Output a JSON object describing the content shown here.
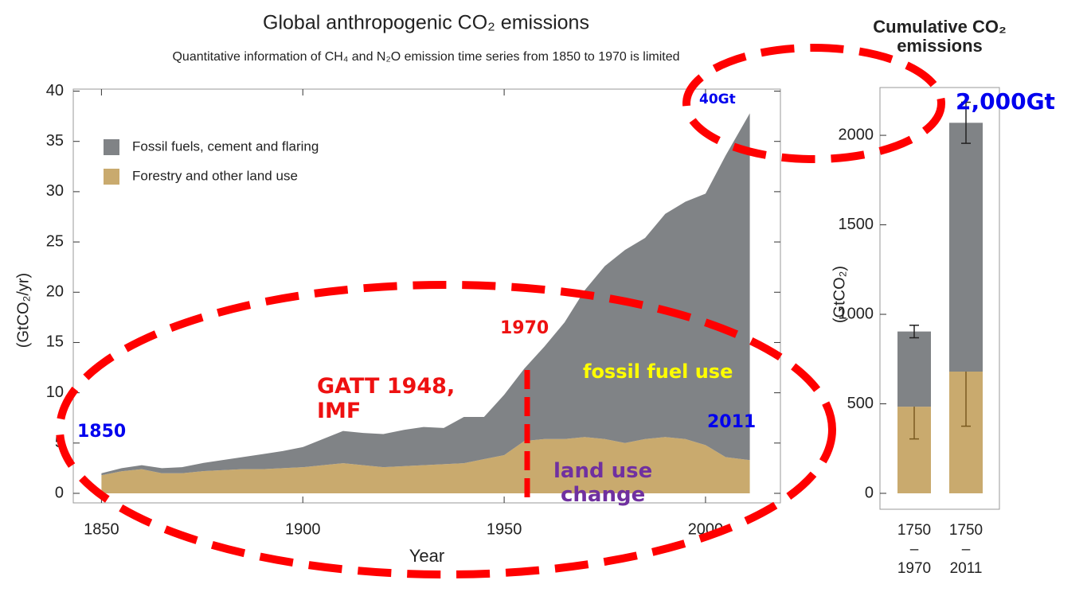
{
  "chart_data": [
    {
      "type": "stacked_area",
      "title": "Global anthropogenic CO₂ emissions",
      "subtitle": "Quantitative information of CH₄ and N₂O emission time series from 1850 to 1970 is limited",
      "xlabel": "Year",
      "ylabel": "(GtCO₂/yr)",
      "x": [
        1850,
        1855,
        1860,
        1865,
        1870,
        1875,
        1880,
        1885,
        1890,
        1895,
        1900,
        1905,
        1910,
        1915,
        1920,
        1925,
        1930,
        1935,
        1940,
        1945,
        1950,
        1955,
        1960,
        1965,
        1970,
        1975,
        1980,
        1985,
        1990,
        1995,
        2000,
        2005,
        2011
      ],
      "series": [
        {
          "name": "Forestry and other land use",
          "color": "#c9aa6e",
          "values": [
            1.8,
            2.2,
            2.4,
            2.0,
            2.0,
            2.2,
            2.3,
            2.4,
            2.4,
            2.5,
            2.6,
            2.8,
            3.0,
            2.8,
            2.6,
            2.7,
            2.8,
            2.9,
            3.0,
            3.4,
            3.8,
            5.2,
            5.4,
            5.4,
            5.6,
            5.4,
            5.0,
            5.4,
            5.6,
            5.4,
            4.8,
            3.6,
            3.3
          ]
        },
        {
          "name": "Fossil fuels, cement and flaring",
          "color": "#808386",
          "values": [
            0.2,
            0.3,
            0.4,
            0.5,
            0.6,
            0.8,
            1.0,
            1.2,
            1.5,
            1.7,
            2.0,
            2.6,
            3.2,
            3.2,
            3.3,
            3.6,
            3.8,
            3.6,
            4.6,
            4.2,
            6.0,
            7.2,
            9.2,
            11.6,
            14.6,
            17.2,
            19.2,
            20.0,
            22.2,
            23.6,
            25.0,
            30.0,
            34.5
          ]
        }
      ],
      "xlim": [
        1843,
        2018.6
      ],
      "xticks": [
        1850,
        1900,
        1950,
        2000
      ],
      "ylim": [
        -0.95,
        40.2
      ],
      "yticks": [
        0,
        5,
        10,
        15,
        20,
        25,
        30,
        35,
        40
      ],
      "legend": "upper left",
      "annotations": [
        "40Gt",
        "2,000Gt",
        "1970",
        "GATT 1948,\nIMF",
        "1850",
        "2011",
        "fossil fuel use",
        "land use\nchange"
      ]
    },
    {
      "type": "stacked_bar",
      "title": "Cumulative CO₂\nemissions",
      "ylabel": "(GtCO₂)",
      "categories": [
        "1750\n–\n1970",
        "1750\n–\n2011"
      ],
      "series": [
        {
          "name": "Forestry and other land use",
          "color": "#c9aa6e",
          "values": [
            484,
            680
          ],
          "errors": [
            180,
            305
          ]
        },
        {
          "name": "Fossil fuels, cement and flaring",
          "color": "#808386",
          "values": [
            420,
            1390
          ],
          "errors": [
            35,
            115
          ]
        }
      ],
      "ylim": [
        -89,
        2267
      ],
      "yticks": [
        0,
        500,
        1000,
        1500,
        2000
      ]
    }
  ]
}
